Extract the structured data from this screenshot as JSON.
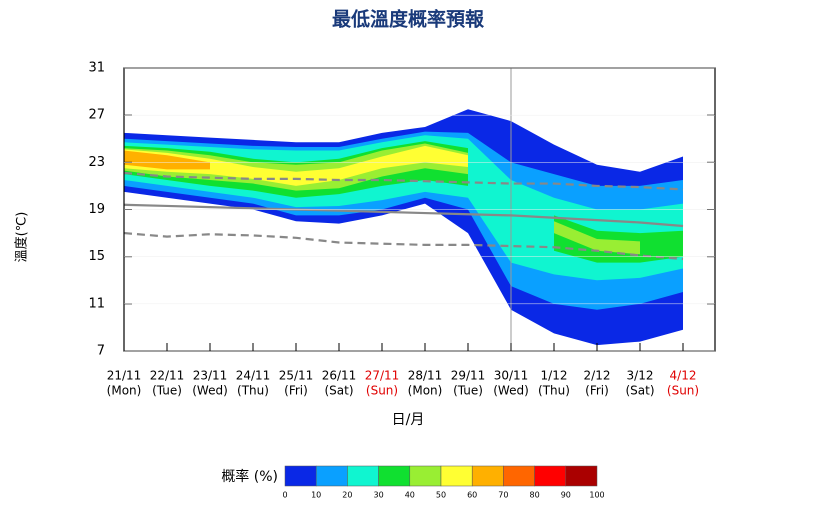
{
  "chart_data": {
    "type": "probability-contour",
    "title": "最低溫度概率預報",
    "y_label": "溫度(℃)",
    "x_label": "日/月",
    "categories": [
      "21/11",
      "22/11",
      "23/11",
      "24/11",
      "25/11",
      "26/11",
      "27/11",
      "28/11",
      "29/11",
      "30/11",
      "1/12",
      "2/12",
      "3/12",
      "4/12"
    ],
    "weekdays": [
      "(Mon)",
      "(Tue)",
      "(Wed)",
      "(Thu)",
      "(Fri)",
      "(Sat)",
      "(Sun)",
      "(Mon)",
      "(Tue)",
      "(Wed)",
      "(Thu)",
      "(Fri)",
      "(Sat)",
      "(Sun)"
    ],
    "label_colors": [
      "#000000",
      "#000000",
      "#000000",
      "#000000",
      "#000000",
      "#000000",
      "#e00000",
      "#000000",
      "#000000",
      "#000000",
      "#000000",
      "#000000",
      "#000000",
      "#e00000"
    ],
    "ylim": [
      7,
      31
    ],
    "yticks": [
      7,
      11,
      15,
      19,
      23,
      27,
      31
    ],
    "bands": [
      {
        "level": 0,
        "upper": [
          25.5,
          25.3,
          25.1,
          24.9,
          24.7,
          24.7,
          25.5,
          26,
          27.5,
          26.5,
          24.5,
          22.8,
          22.2,
          23.5
        ],
        "lower": [
          20.5,
          20,
          19.5,
          19,
          18,
          17.8,
          18.5,
          19.5,
          17,
          10.5,
          8.5,
          7.5,
          7.8,
          8.8
        ]
      },
      {
        "level": 10,
        "upper": [
          25,
          24.8,
          24.6,
          24.4,
          24.3,
          24.3,
          25,
          25.6,
          25.5,
          23,
          22,
          21,
          21,
          21.5
        ],
        "lower": [
          21,
          20.5,
          20,
          19.5,
          18.5,
          18.5,
          19,
          20,
          19,
          12.5,
          11,
          10.5,
          11,
          12
        ]
      },
      {
        "level": 20,
        "upper": [
          24.7,
          24.5,
          24.3,
          24.1,
          24,
          24,
          24.7,
          25.3,
          25,
          21.5,
          20,
          19,
          19,
          19.5
        ],
        "lower": [
          21.5,
          21,
          20.5,
          20,
          19.2,
          19.3,
          19.8,
          20.5,
          20,
          14.5,
          13.5,
          13,
          13.2,
          14
        ]
      },
      {
        "level": 30,
        "upper": [
          24.4,
          24.2,
          23.9,
          23.3,
          23,
          23.3,
          24.2,
          24.8,
          24.2,
          null,
          18.5,
          17.2,
          17,
          17.2
        ],
        "lower": [
          22,
          21.5,
          21,
          20.6,
          20,
          20.3,
          21,
          21.5,
          21,
          null,
          15.5,
          14.5,
          14.5,
          15
        ]
      },
      {
        "level": 40,
        "upper": [
          24.2,
          24,
          23.6,
          23,
          22.8,
          23,
          24,
          24.6,
          23.8,
          null,
          18,
          16.5,
          16.3,
          null
        ],
        "lower": [
          22.3,
          21.8,
          21.5,
          21.2,
          20.6,
          20.8,
          21.8,
          22.5,
          22,
          null,
          17,
          15.5,
          15.2,
          null
        ]
      },
      {
        "level": 50,
        "upper": [
          24.1,
          23.8,
          23.3,
          22.6,
          22.2,
          22.5,
          23.5,
          24.4,
          23.6,
          null,
          null,
          null,
          null,
          null
        ],
        "lower": [
          22.5,
          22.2,
          22,
          21.6,
          21,
          21.5,
          22.5,
          23,
          22.6,
          null,
          null,
          null,
          null,
          null
        ]
      },
      {
        "level": 60,
        "upper": [
          24,
          23.6,
          23,
          null,
          null,
          null,
          null,
          null,
          null,
          null,
          null,
          null,
          null,
          null
        ],
        "lower": [
          22.8,
          22.4,
          22.4,
          null,
          null,
          null,
          null,
          null,
          null,
          null,
          null,
          null,
          null,
          null
        ]
      }
    ],
    "series": [
      {
        "color": "#888888",
        "dash": true,
        "values": [
          22.1,
          21.8,
          21.7,
          21.6,
          21.6,
          21.5,
          21.5,
          21.4,
          21.3,
          21.2,
          21.2,
          21,
          20.9,
          20.7
        ]
      },
      {
        "color": "#888888",
        "dash": false,
        "values": [
          19.4,
          19.3,
          19.2,
          19.1,
          19,
          18.9,
          18.8,
          18.7,
          18.6,
          18.5,
          18.3,
          18.1,
          17.9,
          17.6
        ]
      },
      {
        "color": "#888888",
        "dash": true,
        "values": [
          17,
          16.7,
          16.9,
          16.8,
          16.6,
          16.2,
          16.1,
          16,
          16,
          15.9,
          15.8,
          15.5,
          15.1,
          14.8
        ]
      }
    ],
    "colorbar": {
      "label": "概率 (%)",
      "ticks": [
        0,
        10,
        20,
        30,
        40,
        50,
        60,
        70,
        80,
        90,
        100
      ],
      "colors": [
        "#0a28e6",
        "#0aa0ff",
        "#10f5d0",
        "#10e030",
        "#99ee33",
        "#ffff33",
        "#ffb000",
        "#ff6600",
        "#ff0000",
        "#aa0000"
      ]
    }
  }
}
